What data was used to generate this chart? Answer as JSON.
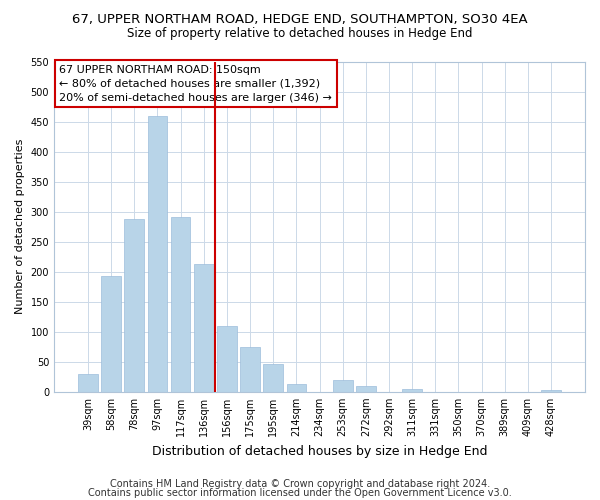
{
  "title": "67, UPPER NORTHAM ROAD, HEDGE END, SOUTHAMPTON, SO30 4EA",
  "subtitle": "Size of property relative to detached houses in Hedge End",
  "xlabel": "Distribution of detached houses by size in Hedge End",
  "ylabel": "Number of detached properties",
  "bar_labels": [
    "39sqm",
    "58sqm",
    "78sqm",
    "97sqm",
    "117sqm",
    "136sqm",
    "156sqm",
    "175sqm",
    "195sqm",
    "214sqm",
    "234sqm",
    "253sqm",
    "272sqm",
    "292sqm",
    "311sqm",
    "331sqm",
    "350sqm",
    "370sqm",
    "389sqm",
    "409sqm",
    "428sqm"
  ],
  "bar_values": [
    30,
    192,
    287,
    460,
    291,
    213,
    110,
    74,
    46,
    13,
    0,
    20,
    9,
    0,
    5,
    0,
    0,
    0,
    0,
    0,
    3
  ],
  "bar_color": "#b8d4e8",
  "bar_edge_color": "#9dbddb",
  "vline_x": 5.5,
  "vline_color": "#cc0000",
  "annotation_lines": [
    "67 UPPER NORTHAM ROAD: 150sqm",
    "← 80% of detached houses are smaller (1,392)",
    "20% of semi-detached houses are larger (346) →"
  ],
  "annotation_box_color": "#cc0000",
  "ylim": [
    0,
    550
  ],
  "yticks": [
    0,
    50,
    100,
    150,
    200,
    250,
    300,
    350,
    400,
    450,
    500,
    550
  ],
  "footer1": "Contains HM Land Registry data © Crown copyright and database right 2024.",
  "footer2": "Contains public sector information licensed under the Open Government Licence v3.0.",
  "title_fontsize": 9.5,
  "subtitle_fontsize": 8.5,
  "xlabel_fontsize": 9,
  "ylabel_fontsize": 8,
  "tick_fontsize": 7,
  "annotation_fontsize": 8,
  "footer_fontsize": 7
}
